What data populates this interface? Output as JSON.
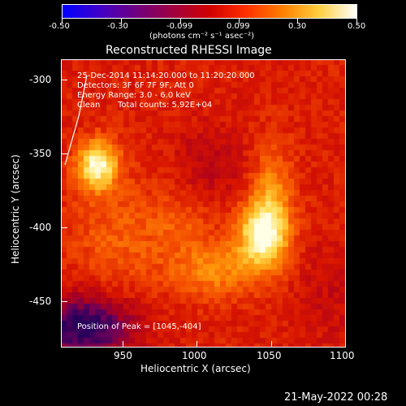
{
  "colorbar": {
    "ticks": [
      "-0.50",
      "-0.30",
      "-0.099",
      "0.099",
      "0.30",
      "0.50"
    ],
    "units_label": "(photons cm⁻² s⁻¹ asec⁻²)",
    "colormap": [
      "#0000ff",
      "#4000c8",
      "#700080",
      "#a00040",
      "#d00000",
      "#ff3000",
      "#ff8000",
      "#ffd040",
      "#ffffff"
    ]
  },
  "image": {
    "title": "Reconstructed RHESSI Image",
    "annotations": {
      "time": "25-Dec-2014 11:14:20.000 to 11:20:20.000",
      "detectors": "Detectors: 3F 6F 7F 9F, Att 0",
      "energy": "Energy Range: 3.0 - 6.0 keV",
      "method": "Clean",
      "counts": "Total counts: 5.92E+04",
      "peak": "Position of Peak = [1045,-404]"
    },
    "x_axis": {
      "label": "Heliocentric X (arcsec)",
      "ticks": [
        "950",
        "1000",
        "1050",
        "1100"
      ],
      "range": [
        909,
        1100
      ]
    },
    "y_axis": {
      "label": "Heliocentric Y (arcsec)",
      "ticks": [
        "-300",
        "-350",
        "-400",
        "-450"
      ],
      "range": [
        -482,
        -287
      ]
    }
  },
  "footer": {
    "date": "21-May-2022 00:28"
  }
}
